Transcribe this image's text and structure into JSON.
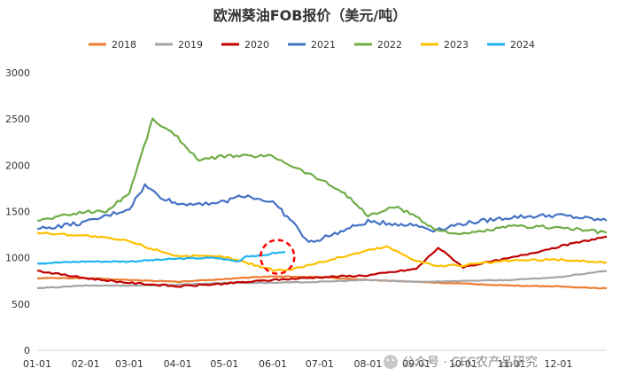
{
  "chart_data": {
    "type": "line",
    "title": "欧洲葵油FOB报价（美元/吨）",
    "xlabel": "",
    "ylabel": "",
    "x_ticks": [
      "01-01",
      "02-01",
      "03-01",
      "04-01",
      "05-01",
      "06-01",
      "07-01",
      "08-01",
      "09-01",
      "10-01",
      "11-01",
      "12-01"
    ],
    "y_ticks": [
      0,
      500,
      1000,
      1500,
      2000,
      2500,
      3000
    ],
    "xlim": [
      1,
      366
    ],
    "ylim": [
      0,
      3000
    ],
    "grid": false,
    "legend_position": "top",
    "series": [
      {
        "name": "2018",
        "color": "#ED7D31",
        "points": [
          [
            1,
            780
          ],
          [
            32,
            780
          ],
          [
            60,
            760
          ],
          [
            91,
            740
          ],
          [
            121,
            770
          ],
          [
            152,
            800
          ],
          [
            182,
            790
          ],
          [
            213,
            760
          ],
          [
            244,
            740
          ],
          [
            274,
            720
          ],
          [
            305,
            700
          ],
          [
            335,
            690
          ],
          [
            366,
            670
          ]
        ]
      },
      {
        "name": "2019",
        "color": "#A5A5A5",
        "points": [
          [
            1,
            670
          ],
          [
            32,
            700
          ],
          [
            60,
            700
          ],
          [
            91,
            710
          ],
          [
            121,
            730
          ],
          [
            152,
            730
          ],
          [
            182,
            740
          ],
          [
            213,
            760
          ],
          [
            244,
            740
          ],
          [
            274,
            750
          ],
          [
            305,
            760
          ],
          [
            335,
            790
          ],
          [
            366,
            860
          ]
        ]
      },
      {
        "name": "2020",
        "color": "#C00000",
        "points": [
          [
            1,
            860
          ],
          [
            32,
            780
          ],
          [
            60,
            730
          ],
          [
            91,
            690
          ],
          [
            121,
            720
          ],
          [
            152,
            760
          ],
          [
            182,
            790
          ],
          [
            213,
            810
          ],
          [
            244,
            880
          ],
          [
            258,
            1110
          ],
          [
            274,
            900
          ],
          [
            305,
            1000
          ],
          [
            335,
            1120
          ],
          [
            366,
            1230
          ]
        ]
      },
      {
        "name": "2021",
        "color": "#4472C4",
        "points": [
          [
            1,
            1310
          ],
          [
            32,
            1380
          ],
          [
            60,
            1530
          ],
          [
            70,
            1780
          ],
          [
            80,
            1660
          ],
          [
            91,
            1580
          ],
          [
            121,
            1600
          ],
          [
            132,
            1680
          ],
          [
            152,
            1600
          ],
          [
            165,
            1380
          ],
          [
            175,
            1160
          ],
          [
            182,
            1200
          ],
          [
            213,
            1390
          ],
          [
            244,
            1350
          ],
          [
            255,
            1300
          ],
          [
            274,
            1370
          ],
          [
            305,
            1440
          ],
          [
            335,
            1460
          ],
          [
            366,
            1400
          ]
        ]
      },
      {
        "name": "2022",
        "color": "#70AD47",
        "points": [
          [
            1,
            1400
          ],
          [
            32,
            1500
          ],
          [
            45,
            1500
          ],
          [
            60,
            1700
          ],
          [
            75,
            2500
          ],
          [
            91,
            2300
          ],
          [
            105,
            2050
          ],
          [
            121,
            2100
          ],
          [
            152,
            2100
          ],
          [
            165,
            1990
          ],
          [
            182,
            1850
          ],
          [
            198,
            1700
          ],
          [
            213,
            1450
          ],
          [
            230,
            1550
          ],
          [
            244,
            1450
          ],
          [
            255,
            1310
          ],
          [
            274,
            1250
          ],
          [
            305,
            1340
          ],
          [
            335,
            1330
          ],
          [
            366,
            1270
          ]
        ]
      },
      {
        "name": "2023",
        "color": "#FFC000",
        "points": [
          [
            1,
            1270
          ],
          [
            32,
            1240
          ],
          [
            60,
            1180
          ],
          [
            70,
            1120
          ],
          [
            91,
            1020
          ],
          [
            121,
            1010
          ],
          [
            152,
            870
          ],
          [
            162,
            870
          ],
          [
            182,
            950
          ],
          [
            213,
            1080
          ],
          [
            225,
            1120
          ],
          [
            244,
            970
          ],
          [
            258,
            910
          ],
          [
            274,
            920
          ],
          [
            305,
            970
          ],
          [
            335,
            980
          ],
          [
            366,
            950
          ]
        ]
      },
      {
        "name": "2024",
        "color": "#1FB4F0",
        "points": [
          [
            1,
            940
          ],
          [
            32,
            960
          ],
          [
            60,
            960
          ],
          [
            91,
            990
          ],
          [
            115,
            1000
          ],
          [
            130,
            960
          ],
          [
            135,
            1020
          ],
          [
            145,
            1020
          ],
          [
            152,
            1050
          ],
          [
            160,
            1060
          ]
        ]
      }
    ],
    "annotations": [
      {
        "type": "circle",
        "x": 155,
        "y": 1010,
        "color": "#FF0000",
        "style": "dashed"
      }
    ]
  },
  "watermark": {
    "text": "公众号 · CFC农产品研究"
  }
}
